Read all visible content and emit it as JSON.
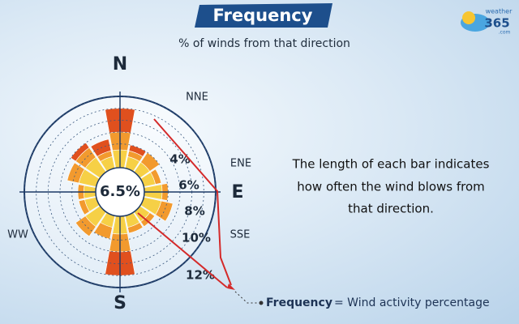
{
  "chart_data": {
    "type": "windrose",
    "title": "Frequency",
    "subtitle": "% of winds from that direction",
    "logo": {
      "top": "weather",
      "main": "365",
      "suffix": ".com"
    },
    "center_label": "6.5%",
    "description": "The length of each bar indicates how often the wind blows from that direction.",
    "footer": {
      "term": "Frequency",
      "definition": "= Wind activity percentage"
    },
    "categories": [
      "N",
      "NNE",
      null,
      "ENE",
      "E",
      null,
      null,
      "SSE",
      "S",
      null,
      "WW",
      null,
      null,
      null,
      null,
      null
    ],
    "rlim": [
      0,
      12
    ],
    "rticks": [
      {
        "value": 4,
        "label": "4%"
      },
      {
        "value": 6,
        "label": "6%"
      },
      {
        "value": 8,
        "label": "8%"
      },
      {
        "value": 10,
        "label": "10%"
      },
      {
        "value": 12,
        "label": "12%"
      }
    ],
    "series": [
      {
        "color": "#f6d046",
        "values": [
          3,
          2,
          2,
          2,
          3,
          3,
          2,
          2,
          3,
          2,
          3,
          2,
          2,
          3,
          3,
          2
        ]
      },
      {
        "color": "#f29a2e",
        "values": [
          3,
          1,
          2,
          1,
          1,
          2,
          1,
          1,
          3,
          2,
          2,
          1,
          1,
          2,
          2,
          1
        ]
      },
      {
        "color": "#e0501e",
        "values": [
          4,
          1,
          0,
          0,
          0,
          0,
          0,
          0,
          4,
          0,
          0,
          0,
          0,
          0,
          1,
          2
        ]
      }
    ]
  }
}
